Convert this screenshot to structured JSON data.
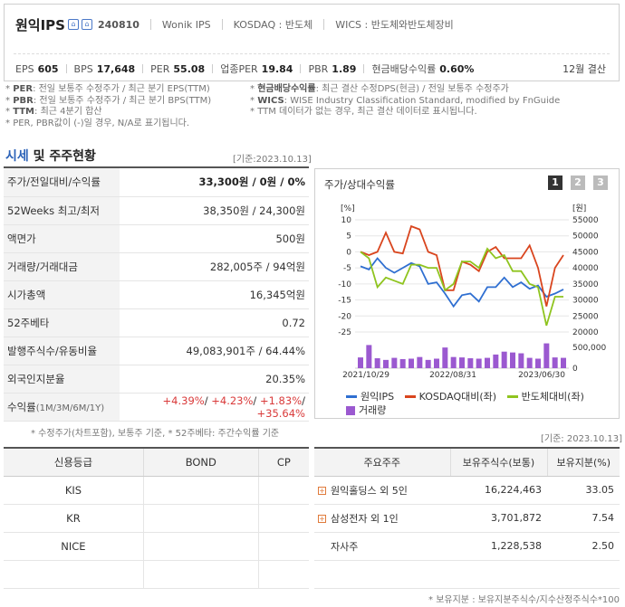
{
  "header": {
    "company": "원익IPS",
    "code": "240810",
    "meta": [
      "Wonik IPS",
      "KOSDAQ : 반도체",
      "WICS : 반도체와반도체장비"
    ],
    "metrics": [
      {
        "label": "EPS",
        "value": "605"
      },
      {
        "label": "BPS",
        "value": "17,648"
      },
      {
        "label": "PER",
        "value": "55.08"
      },
      {
        "label": "업종PER",
        "value": "19.84"
      },
      {
        "label": "PBR",
        "value": "1.89"
      },
      {
        "label": "현금배당수익률",
        "value": "0.60%"
      }
    ],
    "closing": "12월 결산"
  },
  "notes_left": [
    {
      "key": "PER",
      "text": ": 전일 보통주 수정주가 / 최근 분기 EPS(TTM)"
    },
    {
      "key": "PBR",
      "text": ": 전일 보통주 수정주가 / 최근 분기 BPS(TTM)"
    },
    {
      "key": "TTM",
      "text": ": 최근 4분기 합산"
    },
    {
      "key": "",
      "text": "PER, PBR값이 (-)일 경우, N/A로 표기됩니다."
    }
  ],
  "notes_right": [
    {
      "key": "현금배당수익률",
      "text": ": 최근 결산 수정DPS(현금) / 전일 보통주 수정주가"
    },
    {
      "key": "WICS",
      "text": ": WISE Industry Classification Standard, modified by FnGuide"
    },
    {
      "key": "",
      "text": "TTM 데이터가 없는 경우, 최근 결산 데이터로 표시됩니다."
    }
  ],
  "section": {
    "title_hl": "시세",
    "title_rest": " 및 주주현황",
    "ref": "[기준:2023.10.13]"
  },
  "price_table": [
    {
      "key": "주가/전일대비/수익률",
      "value": "33,300원 / 0원 / 0%"
    },
    {
      "key": "52Weeks 최고/최저",
      "value": "38,350원 / 24,300원"
    },
    {
      "key": "액면가",
      "value": "500원"
    },
    {
      "key": "거래량/거래대금",
      "value": "282,005주 / 94억원"
    },
    {
      "key": "시가총액",
      "value": "16,345억원"
    },
    {
      "key": "52주베타",
      "value": "0.72"
    },
    {
      "key": "발행주식수/유동비율",
      "value": "49,083,901주 / 64.44%"
    },
    {
      "key": "외국인지분율",
      "value": "20.35%"
    }
  ],
  "returns": {
    "key": "수익률",
    "key_sub": "(1M/3M/6M/1Y)",
    "values": [
      "+4.39%",
      "+4.23%",
      "+1.83%",
      "+35.64%"
    ]
  },
  "price_note": "* 수정주가(차트포함), 보통주 기준, * 52주베타: 주간수익률 기준",
  "chart": {
    "title": "주가/상대수익률",
    "tabs": [
      "1",
      "2",
      "3"
    ],
    "active_tab": "1",
    "colors": {
      "price": "#2f6fd1",
      "kosdaq": "#d9451e",
      "sector": "#8fc41f",
      "volume": "#9b59d0"
    },
    "legend": [
      "원익IPS",
      "KOSDAQ대비(좌)",
      "반도체대비(좌)",
      "거래량"
    ]
  },
  "chart_data": {
    "type": "line",
    "left_axis": {
      "unit": "[%]",
      "ticks": [
        10,
        5,
        0,
        -5,
        -10,
        -15,
        -20,
        -25
      ],
      "range": [
        -25,
        10
      ]
    },
    "right_axis": {
      "unit": "[원]",
      "ticks": [
        55000,
        50000,
        45000,
        40000,
        35000,
        30000,
        25000,
        20000
      ],
      "range": [
        20000,
        55000
      ]
    },
    "volume_axis": {
      "ticks": [
        500000,
        0
      ]
    },
    "x_labels": [
      "2021/10/29",
      "2022/08/31",
      "2023/06/30"
    ],
    "series": [
      {
        "name": "원익IPS",
        "axis": "right",
        "values": [
          40500,
          39500,
          43000,
          40000,
          38500,
          40000,
          41500,
          40500,
          35000,
          35500,
          32000,
          28000,
          31500,
          32000,
          29500,
          34000,
          34000,
          37000,
          34000,
          35500,
          33500,
          34500,
          31000,
          32000,
          33300
        ]
      },
      {
        "name": "KOSDAQ대비(좌)",
        "axis": "left",
        "values": [
          0,
          -1,
          0,
          6,
          0,
          -0.5,
          8,
          7,
          0,
          -1,
          -12,
          -12,
          -3,
          -4,
          -6,
          0,
          1.5,
          -2,
          -2,
          -2,
          2,
          -5,
          -17,
          -5,
          -1
        ]
      },
      {
        "name": "반도체대비(좌)",
        "axis": "left",
        "values": [
          0,
          -2,
          -11,
          -8,
          -9,
          -10,
          -4,
          -4,
          -5,
          -5,
          -12,
          -10,
          -3,
          -3,
          -5,
          1,
          -2,
          -1,
          -6,
          -6,
          -10,
          -11,
          -23,
          -14,
          -14
        ]
      },
      {
        "name": "거래량",
        "axis": "volume",
        "values": [
          260000,
          560000,
          240000,
          200000,
          250000,
          220000,
          230000,
          270000,
          200000,
          230000,
          500000,
          270000,
          260000,
          240000,
          230000,
          250000,
          330000,
          400000,
          380000,
          360000,
          250000,
          230000,
          600000,
          260000,
          250000
        ]
      }
    ]
  },
  "ref2": "[기준: 2023.10.13]",
  "credit": {
    "headers": [
      "신용등급",
      "BOND",
      "CP"
    ],
    "rows": [
      [
        "KIS",
        "",
        ""
      ],
      [
        "KR",
        "",
        ""
      ],
      [
        "NICE",
        "",
        ""
      ],
      [
        "",
        "",
        ""
      ]
    ]
  },
  "holders": {
    "headers": [
      "주요주주",
      "보유주식수(보통)",
      "보유지분(%)"
    ],
    "rows": [
      {
        "name": "원익홀딩스 외 5인",
        "shares": "16,224,463",
        "pct": "33.05",
        "expand": true
      },
      {
        "name": "삼성전자 외 1인",
        "shares": "3,701,872",
        "pct": "7.54",
        "expand": true
      },
      {
        "name": "자사주",
        "shares": "1,228,538",
        "pct": "2.50",
        "expand": false
      },
      {
        "name": "",
        "shares": "",
        "pct": "",
        "expand": false
      }
    ]
  },
  "holders_note": "* 보유지분 : 보유지분주식수/지수산정주식수*100"
}
